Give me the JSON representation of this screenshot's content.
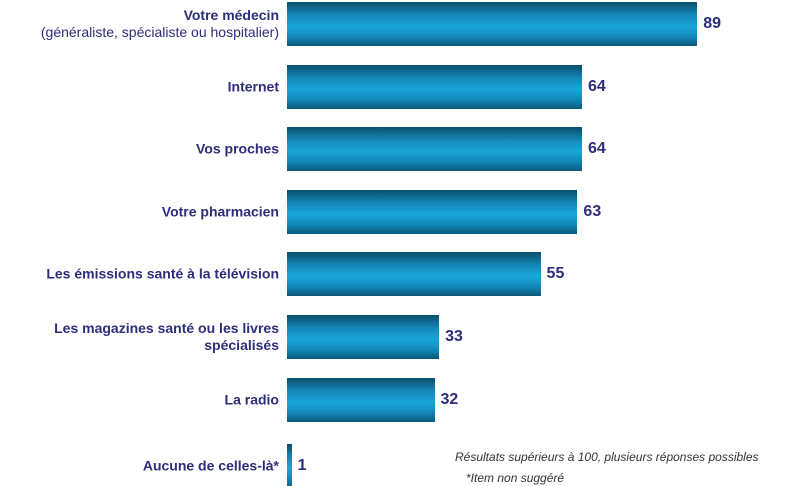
{
  "chart_data": {
    "type": "bar",
    "orientation": "horizontal",
    "categories": [
      "Votre médecin",
      "Internet",
      "Vos proches",
      "Votre pharmacien",
      "Les émissions santé à la télévision",
      "Les magazines santé ou les livres spécialisés",
      "La radio",
      "Aucune de celles-là*"
    ],
    "category_note": "(généraliste, spécialiste ou hospitalier)",
    "values": [
      89,
      64,
      64,
      63,
      55,
      33,
      32,
      1
    ],
    "color": "#1592c4",
    "xlim": [
      0,
      100
    ],
    "annotations": [
      "Résultats supérieurs à 100, plusieurs réponses possibles",
      "*Item non suggéré"
    ]
  }
}
